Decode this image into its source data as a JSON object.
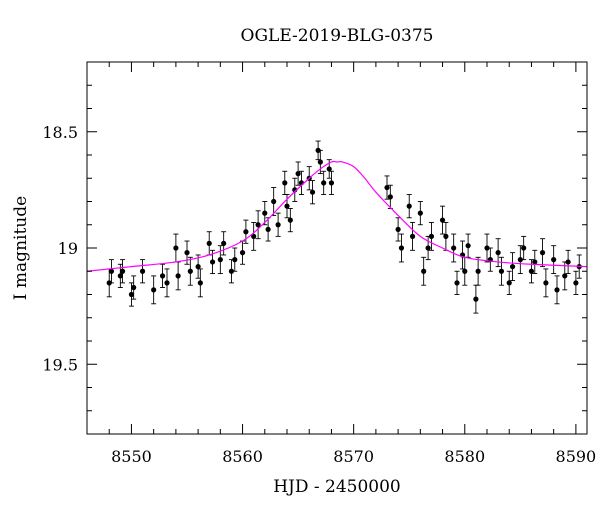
{
  "chart_data": {
    "type": "scatter",
    "title": "OGLE-2019-BLG-0375",
    "xlabel": "HJD - 2450000",
    "ylabel": "I magnitude",
    "xlim": [
      8546,
      8591
    ],
    "ylim": [
      19.8,
      18.2
    ],
    "y_inverted": true,
    "x_ticks": [
      8550,
      8560,
      8570,
      8580,
      8590
    ],
    "x_tick_labels": [
      "8550",
      "8560",
      "8570",
      "8580",
      "8590"
    ],
    "y_ticks": [
      18.5,
      19,
      19.5
    ],
    "y_tick_labels": [
      "18.5",
      "19",
      "19.5"
    ],
    "grid": false,
    "colors": {
      "points": "#000000",
      "model": "#ff00ff",
      "frame": "#000000"
    },
    "model_curve": {
      "x": [
        8546,
        8550,
        8554,
        8557,
        8560,
        8562,
        8564,
        8566,
        8567,
        8568,
        8568.5,
        8569,
        8570,
        8571,
        8572,
        8574,
        8576,
        8578,
        8580,
        8583,
        8586,
        8591
      ],
      "y": [
        19.1,
        19.08,
        19.06,
        19.03,
        18.97,
        18.89,
        18.79,
        18.7,
        18.66,
        18.63,
        18.63,
        18.63,
        18.65,
        18.7,
        18.76,
        18.86,
        18.95,
        19.0,
        19.04,
        19.06,
        19.07,
        19.08
      ]
    },
    "data_points": {
      "x": [
        8548.0,
        8548.2,
        8549.0,
        8549.2,
        8550.0,
        8550.2,
        8551.0,
        8552.0,
        8552.8,
        8553.2,
        8554.0,
        8554.2,
        8555.0,
        8555.3,
        8556.0,
        8556.2,
        8557.0,
        8557.3,
        8558.0,
        8558.3,
        8559.0,
        8559.3,
        8560.0,
        8560.3,
        8561.0,
        8561.4,
        8562.0,
        8562.3,
        8562.8,
        8563.2,
        8563.8,
        8564.0,
        8564.3,
        8564.7,
        8565.0,
        8565.3,
        8566.0,
        8566.3,
        8566.8,
        8567.0,
        8567.3,
        8567.8,
        8568.0,
        8573.0,
        8573.3,
        8574.0,
        8574.3,
        8575.0,
        8575.3,
        8576.0,
        8576.3,
        8576.7,
        8577.0,
        8578.0,
        8578.3,
        8579.0,
        8579.3,
        8579.8,
        8580.0,
        8580.3,
        8581.0,
        8581.2,
        8582.0,
        8582.3,
        8583.0,
        8583.3,
        8584.0,
        8584.3,
        8585.0,
        8585.3,
        8586.0,
        8586.3,
        8587.0,
        8587.3,
        8588.0,
        8588.3,
        8589.0,
        8589.3,
        8590.0,
        8590.3
      ],
      "y": [
        19.15,
        19.1,
        19.12,
        19.1,
        19.2,
        19.17,
        19.1,
        19.18,
        19.12,
        19.15,
        19.0,
        19.12,
        19.02,
        19.1,
        19.08,
        19.15,
        18.98,
        19.06,
        19.05,
        18.98,
        19.1,
        19.05,
        19.02,
        18.93,
        18.95,
        18.9,
        18.85,
        18.92,
        18.8,
        18.9,
        18.72,
        18.82,
        18.88,
        18.75,
        18.68,
        18.72,
        18.7,
        18.76,
        18.58,
        18.63,
        18.72,
        18.66,
        18.72,
        18.74,
        18.78,
        18.92,
        19.0,
        18.82,
        18.95,
        18.85,
        19.1,
        19.0,
        18.95,
        18.88,
        18.95,
        19.0,
        19.15,
        19.03,
        19.1,
        18.99,
        19.22,
        19.1,
        19.0,
        19.05,
        19.02,
        19.1,
        19.15,
        19.08,
        19.05,
        19.0,
        19.1,
        19.06,
        19.02,
        19.15,
        19.05,
        19.18,
        19.12,
        19.06,
        19.15,
        19.08
      ],
      "err": [
        0.06,
        0.05,
        0.05,
        0.05,
        0.05,
        0.05,
        0.05,
        0.06,
        0.05,
        0.06,
        0.06,
        0.06,
        0.05,
        0.06,
        0.05,
        0.06,
        0.05,
        0.05,
        0.06,
        0.05,
        0.05,
        0.05,
        0.05,
        0.05,
        0.06,
        0.06,
        0.05,
        0.05,
        0.06,
        0.05,
        0.05,
        0.05,
        0.05,
        0.05,
        0.05,
        0.05,
        0.05,
        0.05,
        0.04,
        0.05,
        0.05,
        0.04,
        0.05,
        0.05,
        0.05,
        0.05,
        0.06,
        0.05,
        0.06,
        0.05,
        0.06,
        0.05,
        0.06,
        0.06,
        0.06,
        0.06,
        0.05,
        0.06,
        0.06,
        0.05,
        0.06,
        0.06,
        0.06,
        0.05,
        0.06,
        0.06,
        0.05,
        0.06,
        0.06,
        0.05,
        0.05,
        0.05,
        0.06,
        0.06,
        0.06,
        0.06,
        0.06,
        0.05,
        0.05,
        0.05
      ]
    }
  }
}
